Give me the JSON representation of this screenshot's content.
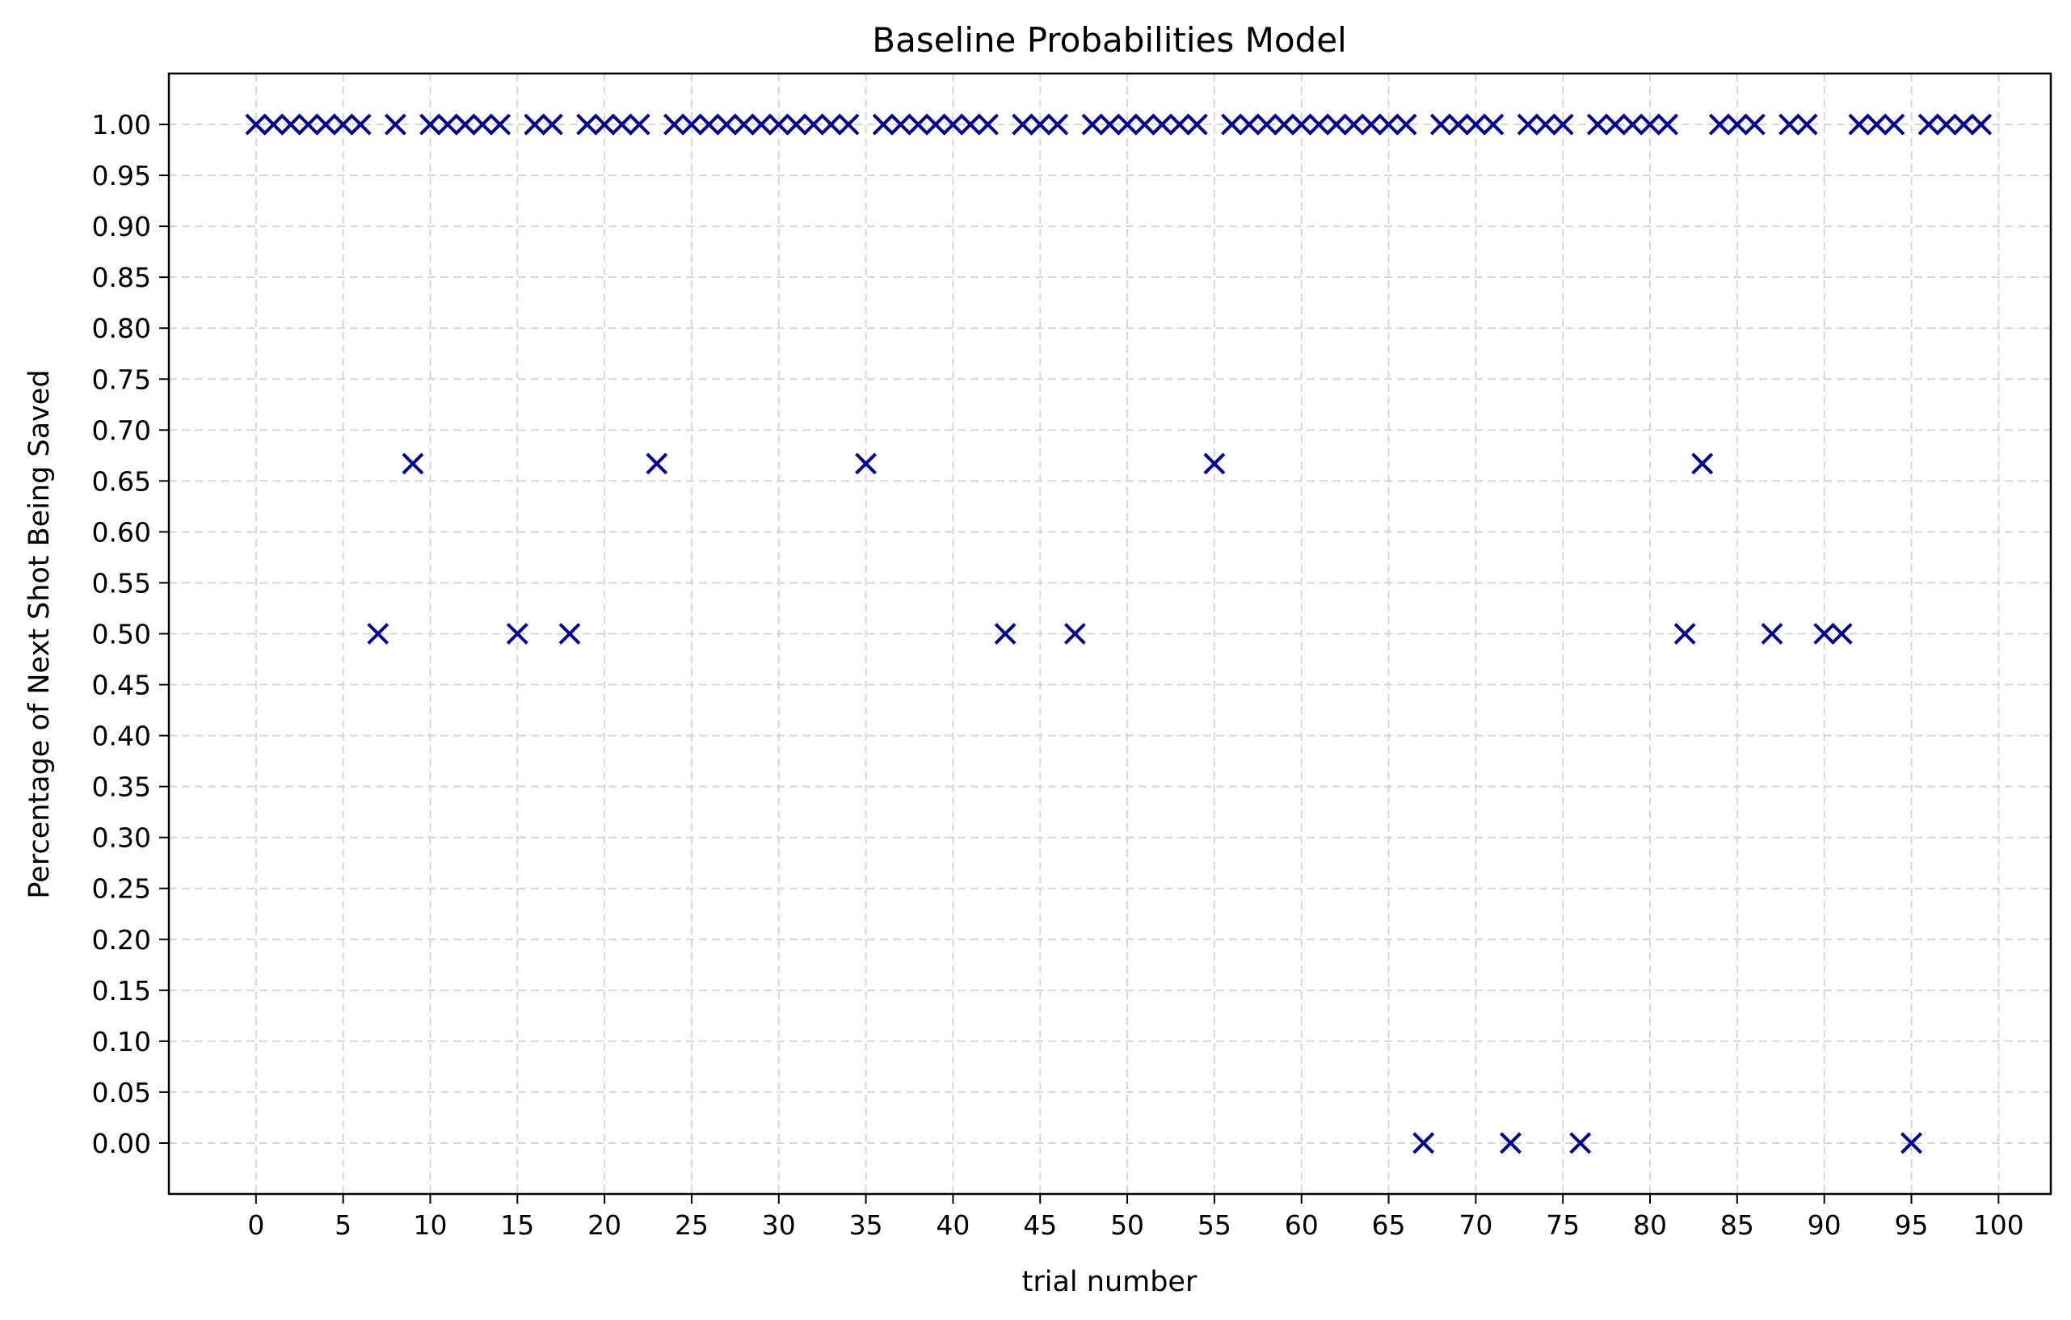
{
  "chart_data": {
    "type": "scatter",
    "title": "Baseline Probabilities Model",
    "xlabel": "trial number",
    "ylabel": "Percentage of Next Shot Being Saved",
    "xlim": [
      -5,
      103
    ],
    "ylim": [
      -0.05,
      1.05
    ],
    "xticks": [
      "0",
      "5",
      "10",
      "15",
      "20",
      "25",
      "30",
      "35",
      "40",
      "45",
      "50",
      "55",
      "60",
      "65",
      "70",
      "75",
      "80",
      "85",
      "90",
      "95",
      "100"
    ],
    "yticks": [
      "0.00",
      "0.05",
      "0.10",
      "0.15",
      "0.20",
      "0.25",
      "0.30",
      "0.35",
      "0.40",
      "0.45",
      "0.50",
      "0.55",
      "0.60",
      "0.65",
      "0.70",
      "0.75",
      "0.80",
      "0.85",
      "0.90",
      "0.95",
      "1.00"
    ],
    "grid": true,
    "marker": "x",
    "marker_color": "#00008b",
    "points": [
      [
        0,
        1.0
      ],
      [
        1,
        1.0
      ],
      [
        2,
        1.0
      ],
      [
        3,
        1.0
      ],
      [
        4,
        1.0
      ],
      [
        5,
        1.0
      ],
      [
        6,
        1.0
      ],
      [
        7,
        0.5
      ],
      [
        8,
        1.0
      ],
      [
        9,
        0.667
      ],
      [
        10,
        1.0
      ],
      [
        11,
        1.0
      ],
      [
        12,
        1.0
      ],
      [
        13,
        1.0
      ],
      [
        14,
        1.0
      ],
      [
        15,
        0.5
      ],
      [
        16,
        1.0
      ],
      [
        17,
        1.0
      ],
      [
        18,
        0.5
      ],
      [
        19,
        1.0
      ],
      [
        20,
        1.0
      ],
      [
        21,
        1.0
      ],
      [
        22,
        1.0
      ],
      [
        23,
        0.667
      ],
      [
        24,
        1.0
      ],
      [
        25,
        1.0
      ],
      [
        26,
        1.0
      ],
      [
        27,
        1.0
      ],
      [
        28,
        1.0
      ],
      [
        29,
        1.0
      ],
      [
        30,
        1.0
      ],
      [
        31,
        1.0
      ],
      [
        32,
        1.0
      ],
      [
        33,
        1.0
      ],
      [
        34,
        1.0
      ],
      [
        35,
        0.667
      ],
      [
        36,
        1.0
      ],
      [
        37,
        1.0
      ],
      [
        38,
        1.0
      ],
      [
        39,
        1.0
      ],
      [
        40,
        1.0
      ],
      [
        41,
        1.0
      ],
      [
        42,
        1.0
      ],
      [
        43,
        0.5
      ],
      [
        44,
        1.0
      ],
      [
        45,
        1.0
      ],
      [
        46,
        1.0
      ],
      [
        47,
        0.5
      ],
      [
        48,
        1.0
      ],
      [
        49,
        1.0
      ],
      [
        50,
        1.0
      ],
      [
        51,
        1.0
      ],
      [
        52,
        1.0
      ],
      [
        53,
        1.0
      ],
      [
        54,
        1.0
      ],
      [
        55,
        0.667
      ],
      [
        56,
        1.0
      ],
      [
        57,
        1.0
      ],
      [
        58,
        1.0
      ],
      [
        59,
        1.0
      ],
      [
        60,
        1.0
      ],
      [
        61,
        1.0
      ],
      [
        62,
        1.0
      ],
      [
        63,
        1.0
      ],
      [
        64,
        1.0
      ],
      [
        65,
        1.0
      ],
      [
        66,
        1.0
      ],
      [
        67,
        0.0
      ],
      [
        68,
        1.0
      ],
      [
        69,
        1.0
      ],
      [
        70,
        1.0
      ],
      [
        71,
        1.0
      ],
      [
        72,
        0.0
      ],
      [
        73,
        1.0
      ],
      [
        74,
        1.0
      ],
      [
        75,
        1.0
      ],
      [
        76,
        0.0
      ],
      [
        77,
        1.0
      ],
      [
        78,
        1.0
      ],
      [
        79,
        1.0
      ],
      [
        80,
        1.0
      ],
      [
        81,
        1.0
      ],
      [
        82,
        0.5
      ],
      [
        83,
        0.667
      ],
      [
        84,
        1.0
      ],
      [
        85,
        1.0
      ],
      [
        86,
        1.0
      ],
      [
        87,
        0.5
      ],
      [
        88,
        1.0
      ],
      [
        89,
        1.0
      ],
      [
        90,
        0.5
      ],
      [
        91,
        0.5
      ],
      [
        92,
        1.0
      ],
      [
        93,
        1.0
      ],
      [
        94,
        1.0
      ],
      [
        95,
        0.0
      ],
      [
        96,
        1.0
      ],
      [
        97,
        1.0
      ],
      [
        98,
        1.0
      ],
      [
        99,
        1.0
      ]
    ]
  }
}
